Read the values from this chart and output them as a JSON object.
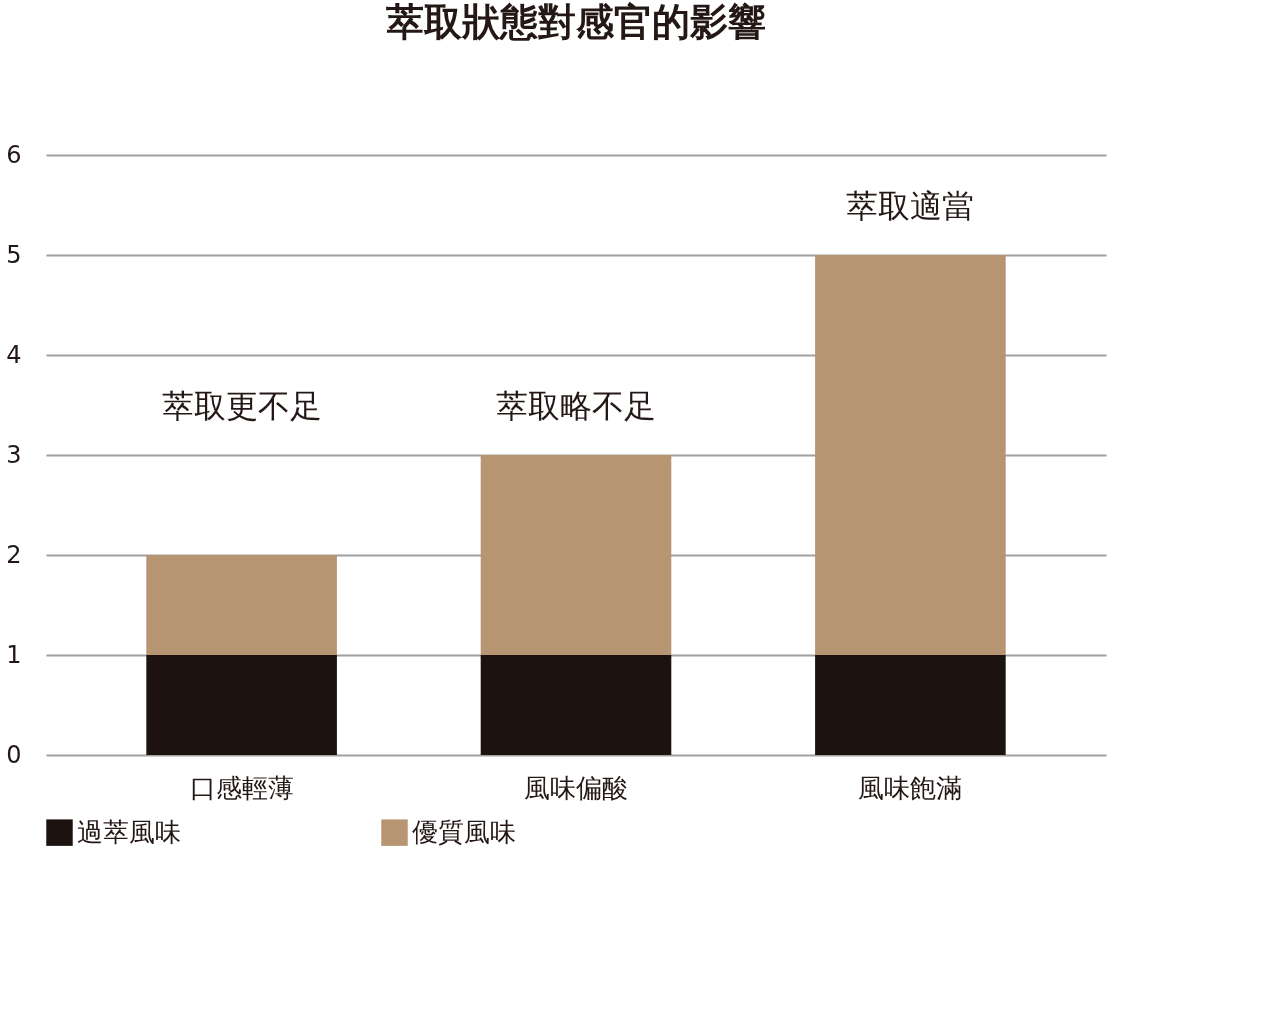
{
  "chart_data": {
    "type": "bar",
    "title": "萃取狀態對感官的影響",
    "categories": [
      "口感輕薄",
      "風味偏酸",
      "風味飽滿"
    ],
    "stacked": true,
    "series": [
      {
        "name": "過萃風味",
        "color": "#1c1210",
        "values": [
          1,
          1,
          1
        ]
      },
      {
        "name": "優質風味",
        "color": "#b79572",
        "values": [
          1,
          2,
          4
        ]
      }
    ],
    "ylim": [
      0,
      6
    ],
    "yticks": [
      0,
      1,
      2,
      3,
      4,
      5,
      6
    ],
    "grid": "y",
    "legend": "bottom",
    "annotations": [
      "萃取更不足",
      "萃取略不足",
      "萃取適當"
    ]
  }
}
